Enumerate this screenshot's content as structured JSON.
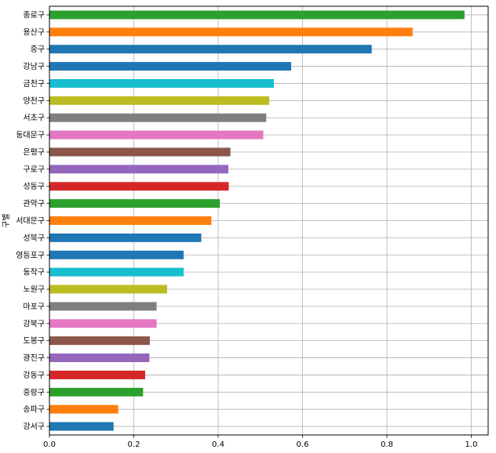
{
  "chart_data": {
    "type": "bar",
    "orientation": "horizontal",
    "title": "",
    "xlabel": "",
    "ylabel": "구별",
    "xlim": [
      0,
      1.04
    ],
    "xticks": [
      0.0,
      0.2,
      0.4,
      0.6,
      0.8,
      1.0
    ],
    "xtick_labels": [
      "0.0",
      "0.2",
      "0.4",
      "0.6",
      "0.8",
      "1.0"
    ],
    "grid": true,
    "categories": [
      "종로구",
      "용산구",
      "중구",
      "강남구",
      "금천구",
      "양천구",
      "서초구",
      "동대문구",
      "은평구",
      "구로구",
      "성동구",
      "관악구",
      "서대문구",
      "성북구",
      "영등포구",
      "동작구",
      "노원구",
      "마포구",
      "강북구",
      "도봉구",
      "광진구",
      "강동구",
      "중랑구",
      "송파구",
      "강서구"
    ],
    "values": [
      0.984,
      0.861,
      0.764,
      0.573,
      0.532,
      0.521,
      0.514,
      0.507,
      0.429,
      0.424,
      0.425,
      0.404,
      0.384,
      0.36,
      0.318,
      0.318,
      0.279,
      0.254,
      0.254,
      0.238,
      0.237,
      0.227,
      0.222,
      0.163,
      0.152
    ],
    "colors": [
      "#2ca02c",
      "#ff7f0e",
      "#1f77b4",
      "#1f77b4",
      "#17becf",
      "#bcbd22",
      "#7f7f7f",
      "#e377c2",
      "#8c564b",
      "#9467bd",
      "#d62728",
      "#2ca02c",
      "#ff7f0e",
      "#1f77b4",
      "#1f77b4",
      "#17becf",
      "#bcbd22",
      "#7f7f7f",
      "#e377c2",
      "#8c564b",
      "#9467bd",
      "#d62728",
      "#2ca02c",
      "#ff7f0e",
      "#1f77b4"
    ],
    "grid_color": "#b0b0b0"
  }
}
